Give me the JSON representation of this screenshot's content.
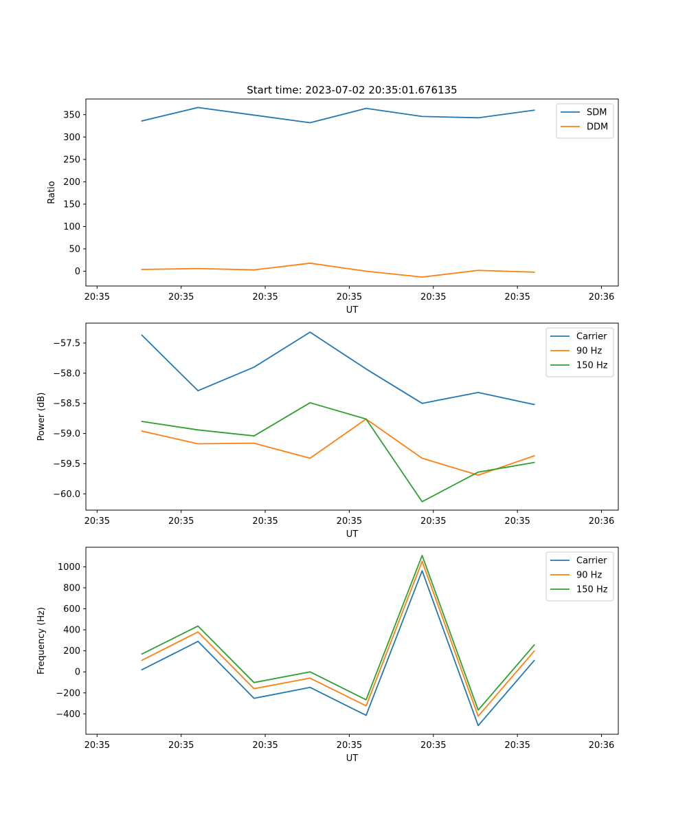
{
  "figure_title": "Start time: 2023-07-02 20:35:01.676135",
  "chart_data": [
    {
      "type": "line",
      "title": "Start time: 2023-07-02 20:35:01.676135",
      "xlabel": "UT",
      "ylabel": "Ratio",
      "x": [
        1,
        2,
        3,
        4,
        5,
        6,
        7,
        8
      ],
      "xlim": [
        0,
        9.5
      ],
      "xticks": [
        {
          "value": 0.2,
          "label": "20:35"
        },
        {
          "value": 1.7,
          "label": "20:35"
        },
        {
          "value": 3.2,
          "label": "20:35"
        },
        {
          "value": 4.7,
          "label": "20:35"
        },
        {
          "value": 6.2,
          "label": "20:35"
        },
        {
          "value": 7.7,
          "label": "20:35"
        },
        {
          "value": 9.2,
          "label": "20:36"
        }
      ],
      "ylim": [
        -33,
        385
      ],
      "yticks": [
        0,
        50,
        100,
        150,
        200,
        250,
        300,
        350
      ],
      "legend_position": "top-right",
      "series": [
        {
          "name": "SDM",
          "color": "#1f77b4",
          "values": [
            336,
            366,
            349,
            332,
            364,
            346,
            343,
            360
          ]
        },
        {
          "name": "DDM",
          "color": "#ff7f0e",
          "values": [
            4,
            6,
            3,
            18,
            0,
            -13,
            2,
            -2
          ]
        }
      ]
    },
    {
      "type": "line",
      "title": "",
      "xlabel": "UT",
      "ylabel": "Power (dB)",
      "x": [
        1,
        2,
        3,
        4,
        5,
        6,
        7,
        8
      ],
      "xlim": [
        0,
        9.5
      ],
      "xticks": [
        {
          "value": 0.2,
          "label": "20:35"
        },
        {
          "value": 1.7,
          "label": "20:35"
        },
        {
          "value": 3.2,
          "label": "20:35"
        },
        {
          "value": 4.7,
          "label": "20:35"
        },
        {
          "value": 6.2,
          "label": "20:35"
        },
        {
          "value": 7.7,
          "label": "20:35"
        },
        {
          "value": 9.2,
          "label": "20:36"
        }
      ],
      "ylim": [
        -60.27,
        -57.17
      ],
      "yticks": [
        -57.5,
        -58.0,
        -58.5,
        -59.0,
        -59.5,
        -60.0
      ],
      "ytick_labels": [
        "−57.5",
        "−58.0",
        "−58.5",
        "−59.0",
        "−59.5",
        "−60.0"
      ],
      "legend_position": "top-right",
      "series": [
        {
          "name": "Carrier",
          "color": "#1f77b4",
          "values": [
            -57.37,
            -58.29,
            -57.9,
            -57.32,
            -57.93,
            -58.5,
            -58.32,
            -58.52
          ]
        },
        {
          "name": "90 Hz",
          "color": "#ff7f0e",
          "values": [
            -58.96,
            -59.17,
            -59.16,
            -59.41,
            -58.76,
            -59.41,
            -59.69,
            -59.37
          ]
        },
        {
          "name": "150 Hz",
          "color": "#2ca02c",
          "values": [
            -58.8,
            -58.94,
            -59.04,
            -58.49,
            -58.76,
            -60.13,
            -59.64,
            -59.48
          ]
        }
      ]
    },
    {
      "type": "line",
      "title": "",
      "xlabel": "UT",
      "ylabel": "Frequency (Hz)",
      "x": [
        1,
        2,
        3,
        4,
        5,
        6,
        7,
        8
      ],
      "xlim": [
        0,
        9.5
      ],
      "xticks": [
        {
          "value": 0.2,
          "label": "20:35"
        },
        {
          "value": 1.7,
          "label": "20:35"
        },
        {
          "value": 3.2,
          "label": "20:35"
        },
        {
          "value": 4.7,
          "label": "20:35"
        },
        {
          "value": 6.2,
          "label": "20:35"
        },
        {
          "value": 7.7,
          "label": "20:35"
        },
        {
          "value": 9.2,
          "label": "20:36"
        }
      ],
      "ylim": [
        -594,
        1186
      ],
      "yticks": [
        -400,
        -200,
        0,
        200,
        400,
        600,
        800,
        1000
      ],
      "ytick_labels": [
        "−400",
        "−200",
        "0",
        "200",
        "400",
        "600",
        "800",
        "1000"
      ],
      "legend_position": "top-right",
      "series": [
        {
          "name": "Carrier",
          "color": "#1f77b4",
          "values": [
            20,
            290,
            -252,
            -148,
            -414,
            962,
            -512,
            108
          ]
        },
        {
          "name": "90 Hz",
          "color": "#ff7f0e",
          "values": [
            110,
            380,
            -160,
            -60,
            -324,
            1052,
            -422,
            198
          ]
        },
        {
          "name": "150 Hz",
          "color": "#2ca02c",
          "values": [
            170,
            436,
            -102,
            0,
            -266,
            1108,
            -364,
            256
          ]
        }
      ]
    }
  ]
}
